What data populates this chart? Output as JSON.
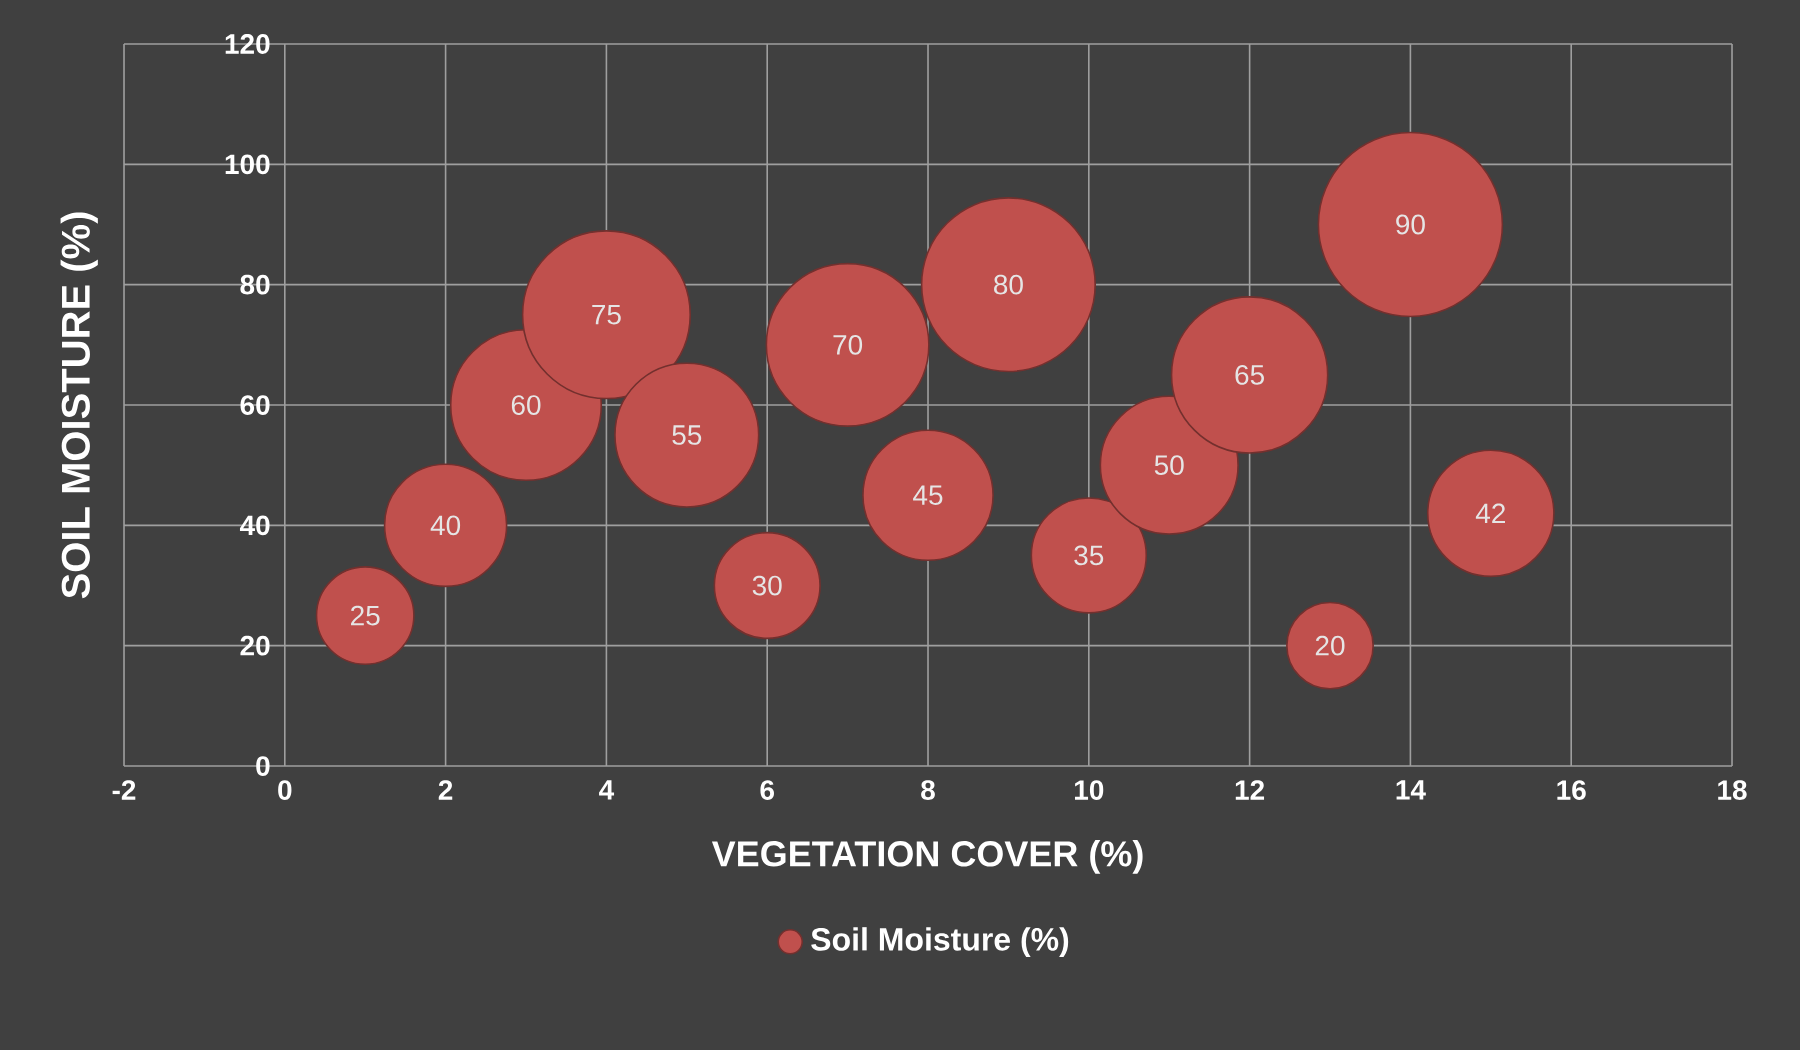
{
  "chart_data": {
    "type": "bubble",
    "xlabel": "VEGETATION COVER (%)",
    "ylabel": "SOIL MOISTURE (%)",
    "x": [
      1,
      2,
      3,
      4,
      5,
      6,
      7,
      8,
      9,
      10,
      11,
      12,
      13,
      14,
      15
    ],
    "series": [
      {
        "name": "Soil Moisture (%)",
        "color": "#c0504d",
        "values": [
          25,
          40,
          60,
          75,
          55,
          30,
          70,
          45,
          80,
          35,
          50,
          65,
          20,
          90,
          42
        ],
        "sizes": [
          0.28,
          0.44,
          0.67,
          0.83,
          0.61,
          0.33,
          0.78,
          0.5,
          0.89,
          0.39,
          0.56,
          0.72,
          0.22,
          1,
          0.47
        ]
      }
    ],
    "data_labels": true,
    "grid": true,
    "legend": "bottom",
    "marker": "circle",
    "xlim": [
      -2,
      18
    ],
    "xticks": [
      -2,
      0,
      2,
      4,
      6,
      8,
      10,
      12,
      14,
      16,
      18
    ],
    "ylim": [
      0,
      120
    ],
    "yticks": [
      0,
      20,
      40,
      60,
      80,
      100,
      120
    ]
  }
}
